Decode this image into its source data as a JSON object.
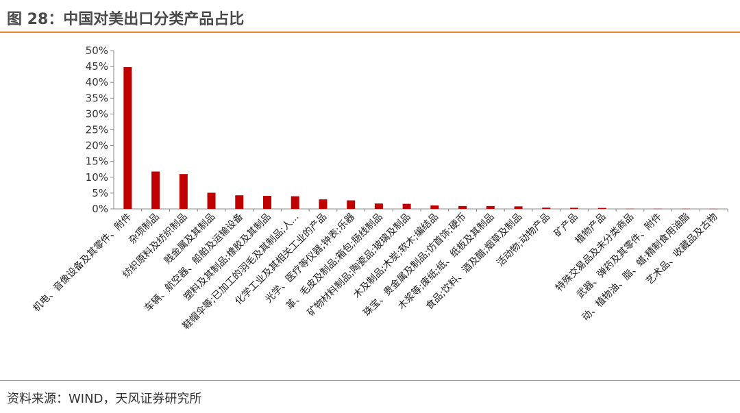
{
  "header": {
    "title": "图 28：中国对美出口分类产品占比"
  },
  "footer": {
    "source": "资料来源：WIND，天风证券研究所"
  },
  "colors": {
    "bar": "#c00000",
    "accent": "#e8862a"
  },
  "chart_data": {
    "type": "bar",
    "title": "",
    "xlabel": "",
    "ylabel": "",
    "ylim": [
      0,
      50
    ],
    "yticks": [
      "0%",
      "5%",
      "10%",
      "15%",
      "20%",
      "25%",
      "30%",
      "35%",
      "40%",
      "45%",
      "50%"
    ],
    "grid": false,
    "categories": [
      "机电、音像设备及其零件、附件",
      "杂项制品",
      "纺织原料及纺织制品",
      "贱金属及其制品",
      "车辆、航空器、船舶及运输设备",
      "塑料及其制品;橡胶及其制品",
      "鞋帽伞等;已加工的羽毛及其制品;人...",
      "化学工业及其相关工业的产品",
      "光学、医疗等仪器;钟表;乐器",
      "革、毛皮及制品;箱包;肠线制品",
      "矿物材料制品;陶瓷品;玻璃及制品",
      "木及制品;木炭;软木;编结品",
      "珠宝、贵金属及制品;仿首饰;硬币",
      "木浆等;废纸;纸、纸板及其制品",
      "食品;饮料、酒及醋;烟草及制品",
      "活动物;动物产品",
      "矿产品",
      "植物产品",
      "特殊交易品及未分类商品",
      "武器、弹药及其零件、附件",
      "动、植物油、脂、蜡;精制食用油脂",
      "艺术品、收藏品及古物"
    ],
    "values": [
      44.8,
      11.8,
      11.0,
      5.1,
      4.3,
      4.1,
      4.0,
      3.0,
      2.7,
      1.7,
      1.6,
      1.1,
      0.9,
      0.9,
      0.8,
      0.4,
      0.35,
      0.3,
      0.05,
      0.05,
      0.05,
      0.03
    ]
  }
}
